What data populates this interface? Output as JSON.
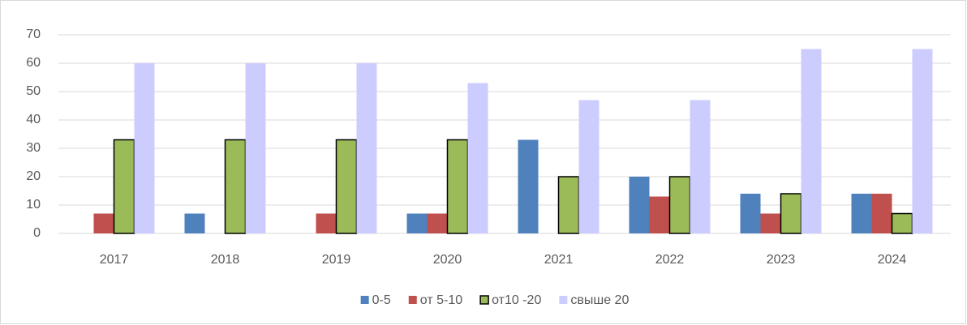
{
  "chart_data": {
    "type": "bar",
    "categories": [
      "2017",
      "2018",
      "2019",
      "2020",
      "2021",
      "2022",
      "2023",
      "2024"
    ],
    "series": [
      {
        "name": "0-5",
        "color": "#4f81bd",
        "values": [
          0,
          7,
          0,
          7,
          33,
          20,
          14,
          14
        ]
      },
      {
        "name": "от 5-10",
        "color": "#c0504d",
        "values": [
          7,
          0,
          7,
          7,
          0,
          13,
          7,
          14
        ]
      },
      {
        "name": "от10 -20",
        "color": "#9bbb59",
        "edgecolor": "#000000",
        "values": [
          33,
          33,
          33,
          33,
          20,
          20,
          14,
          7
        ]
      },
      {
        "name": "свыше 20",
        "color": "#ccccff",
        "values": [
          60,
          60,
          60,
          53,
          47,
          47,
          65,
          65
        ]
      }
    ],
    "ylim": [
      0,
      70
    ],
    "yticks": [
      0,
      10,
      20,
      30,
      40,
      50,
      60,
      70
    ],
    "grid": true,
    "legend": "bottom"
  }
}
